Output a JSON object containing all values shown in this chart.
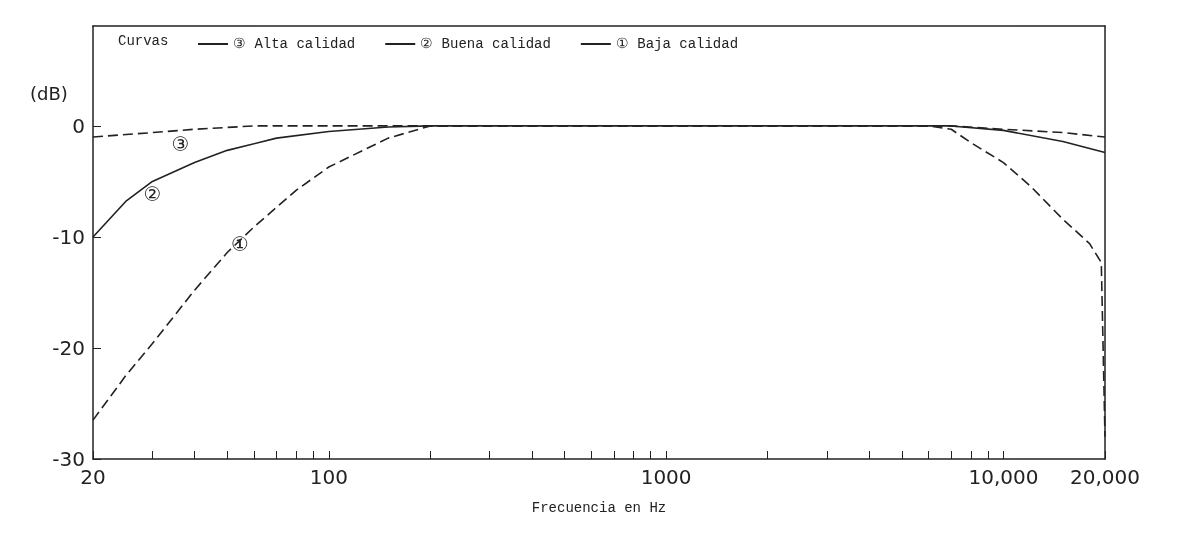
{
  "chart_data": {
    "type": "line",
    "xlabel": "Frecuencia en Hz",
    "ylabel": "(dB)",
    "legend_title": "Curvas",
    "log": "x",
    "xlim": [
      20,
      20000
    ],
    "ylim": [
      -30,
      9
    ],
    "xticks": [
      20,
      {
        "value": 30,
        "label": null
      },
      {
        "value": 40,
        "label": null
      },
      {
        "value": 50,
        "label": null
      },
      {
        "value": 60,
        "label": null
      },
      {
        "value": 70,
        "label": null
      },
      {
        "value": 80,
        "label": null
      },
      {
        "value": 90,
        "label": null
      },
      100,
      {
        "value": 200,
        "label": null
      },
      {
        "value": 300,
        "label": null
      },
      {
        "value": 400,
        "label": null
      },
      {
        "value": 500,
        "label": null
      },
      {
        "value": 600,
        "label": null
      },
      {
        "value": 700,
        "label": null
      },
      {
        "value": 800,
        "label": null
      },
      {
        "value": 900,
        "label": null
      },
      1000,
      {
        "value": 2000,
        "label": null
      },
      {
        "value": 3000,
        "label": null
      },
      {
        "value": 4000,
        "label": null
      },
      {
        "value": 5000,
        "label": null
      },
      {
        "value": 6000,
        "label": null
      },
      {
        "value": 7000,
        "label": null
      },
      {
        "value": 8000,
        "label": null
      },
      {
        "value": 9000,
        "label": null
      },
      {
        "value": 10000,
        "label": "10,000"
      },
      {
        "value": 20000,
        "label": "20,000"
      }
    ],
    "yticks": [
      0,
      -10,
      -20,
      -30
    ],
    "grid": false,
    "legend": "top left",
    "marker": "none",
    "series": [
      {
        "name": "③ Alta calidad",
        "color": "#222222",
        "line_style": "dashed",
        "x": [
          20,
          30,
          40,
          60,
          100,
          1000,
          7000,
          10000,
          15000,
          20000
        ],
        "values": [
          -1,
          -0.6,
          -0.3,
          0,
          0,
          0,
          0,
          -0.3,
          -0.6,
          -1
        ]
      },
      {
        "name": "② Buena calidad",
        "color": "#222222",
        "line_style": "solid",
        "x": [
          20,
          25,
          30,
          40,
          50,
          70,
          100,
          150,
          200,
          1000,
          7000,
          10000,
          15000,
          20000
        ],
        "values": [
          -10,
          -6.8,
          -5,
          -3.3,
          -2.2,
          -1.1,
          -0.5,
          -0.1,
          0,
          0,
          0,
          -0.4,
          -1.4,
          -2.4
        ]
      },
      {
        "name": "① Baja calidad",
        "color": "#222222",
        "line_style": "dashed",
        "x": [
          20,
          25,
          30,
          40,
          50,
          60,
          80,
          100,
          150,
          200,
          1000,
          6000,
          7000,
          8000,
          10000,
          12000,
          15000,
          18000,
          19500,
          20000
        ],
        "values": [
          -26.5,
          -22.5,
          -19.6,
          -14.8,
          -11.4,
          -9.1,
          -5.8,
          -3.7,
          -1.1,
          0,
          0,
          0,
          -0.3,
          -1.5,
          -3.3,
          -5.4,
          -8.4,
          -10.6,
          -12.3,
          -28
        ]
      }
    ],
    "annotations": [
      {
        "text": "③",
        "x": 40,
        "y": 0
      },
      {
        "text": "②",
        "x": 33,
        "y": -4.5
      },
      {
        "text": "①",
        "x": 60,
        "y": -9
      }
    ]
  }
}
